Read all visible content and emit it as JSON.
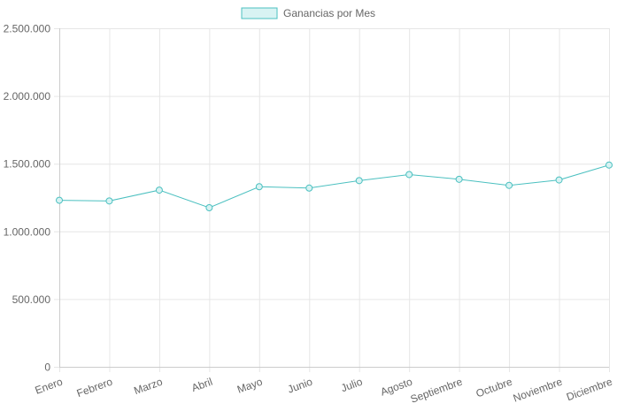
{
  "chart_data": {
    "type": "line",
    "title": "",
    "xlabel": "",
    "ylabel": "",
    "categories": [
      "Enero",
      "Febrero",
      "Marzo",
      "Abril",
      "Mayo",
      "Junio",
      "Julio",
      "Agosto",
      "Septiembre",
      "Octubre",
      "Noviembre",
      "Diciembre"
    ],
    "series": [
      {
        "name": "Ganancias por Mes",
        "values": [
          1230000,
          1225000,
          1305000,
          1175000,
          1330000,
          1320000,
          1375000,
          1420000,
          1385000,
          1340000,
          1380000,
          1490000
        ],
        "color": "#4bc0c0",
        "fill": "#d8f3f3"
      }
    ],
    "ylim": [
      0,
      2500000
    ],
    "y_ticks": [
      "0",
      "500.000",
      "1.000.000",
      "1.500.000",
      "2.000.000",
      "2.500.000"
    ],
    "grid": true,
    "legend": "top-center"
  }
}
